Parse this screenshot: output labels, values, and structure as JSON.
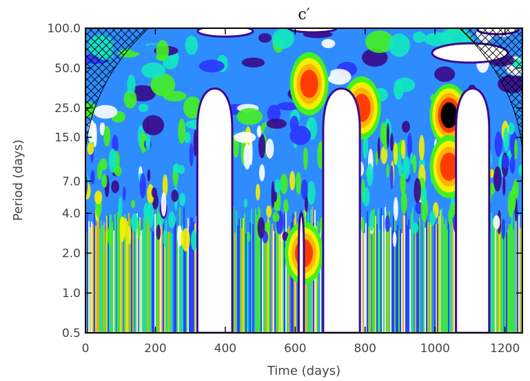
{
  "chart_data": {
    "type": "heatmap",
    "title": "c′",
    "xlabel": "Time (days)",
    "ylabel": "Period (days)",
    "x_scale": "linear",
    "y_scale": "log",
    "xlim": [
      0,
      1250
    ],
    "ylim": [
      0.5,
      100
    ],
    "x_ticks": [
      0,
      200,
      400,
      600,
      800,
      1000,
      1200
    ],
    "x_tick_labels": [
      "0",
      "200",
      "400",
      "600",
      "800",
      "1000",
      "1200"
    ],
    "y_ticks": [
      0.5,
      1.0,
      2.0,
      4.0,
      7.0,
      15.0,
      25.0,
      50.0,
      100.0
    ],
    "y_tick_labels": [
      "0.5",
      "1.0",
      "2.0",
      "4.0",
      "7.0",
      "15.0",
      "25.0",
      "50.0",
      "100.0"
    ],
    "data_gaps_days": [
      [
        320,
        420
      ],
      [
        610,
        625
      ],
      [
        680,
        785
      ],
      [
        1060,
        1155
      ]
    ],
    "cone_of_influence": "cross-hatched at left and right edges",
    "peaks": [
      {
        "time": 1040,
        "period": 22,
        "level": "maximum"
      },
      {
        "time": 640,
        "period": 38,
        "level": "high"
      },
      {
        "time": 790,
        "period": 25,
        "level": "high"
      },
      {
        "time": 1040,
        "period": 9,
        "level": "high"
      },
      {
        "time": 625,
        "period": 2,
        "level": "high"
      }
    ],
    "colors": {
      "white": "#ffffff",
      "purple": "#3a0a8c",
      "blue": "#2b35ff",
      "sky": "#2f8cff",
      "cyan": "#12e8c0",
      "green": "#44f020",
      "yellow": "#f4f000",
      "orange": "#ffb400",
      "red": "#ff3c00",
      "black": "#000000"
    }
  }
}
